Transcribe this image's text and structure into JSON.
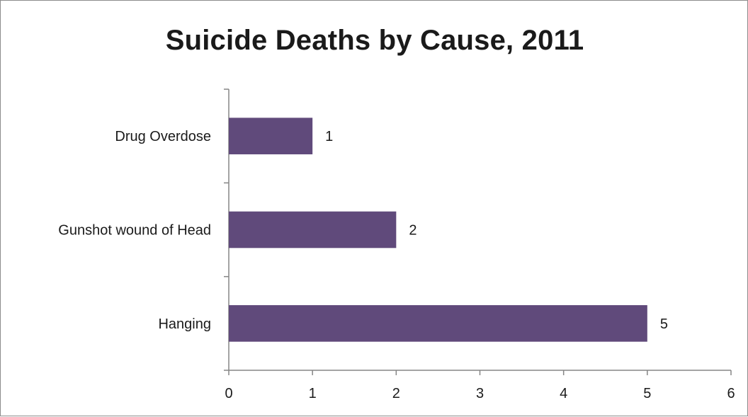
{
  "chart_data": {
    "type": "bar",
    "orientation": "horizontal",
    "title": "Suicide Deaths by Cause, 2011",
    "categories": [
      "Drug Overdose",
      "Gunshot wound of Head",
      "Hanging"
    ],
    "values": [
      1,
      2,
      5
    ],
    "data_labels": [
      "1",
      "2",
      "5"
    ],
    "xlim": [
      0,
      6
    ],
    "x_ticks": [
      0,
      1,
      2,
      3,
      4,
      5,
      6
    ],
    "x_tick_labels": [
      "0",
      "1",
      "2",
      "3",
      "4",
      "5",
      "6"
    ],
    "xlabel": "",
    "ylabel": "",
    "grid": false,
    "legend": "none",
    "bar_color": "#604a7b"
  }
}
